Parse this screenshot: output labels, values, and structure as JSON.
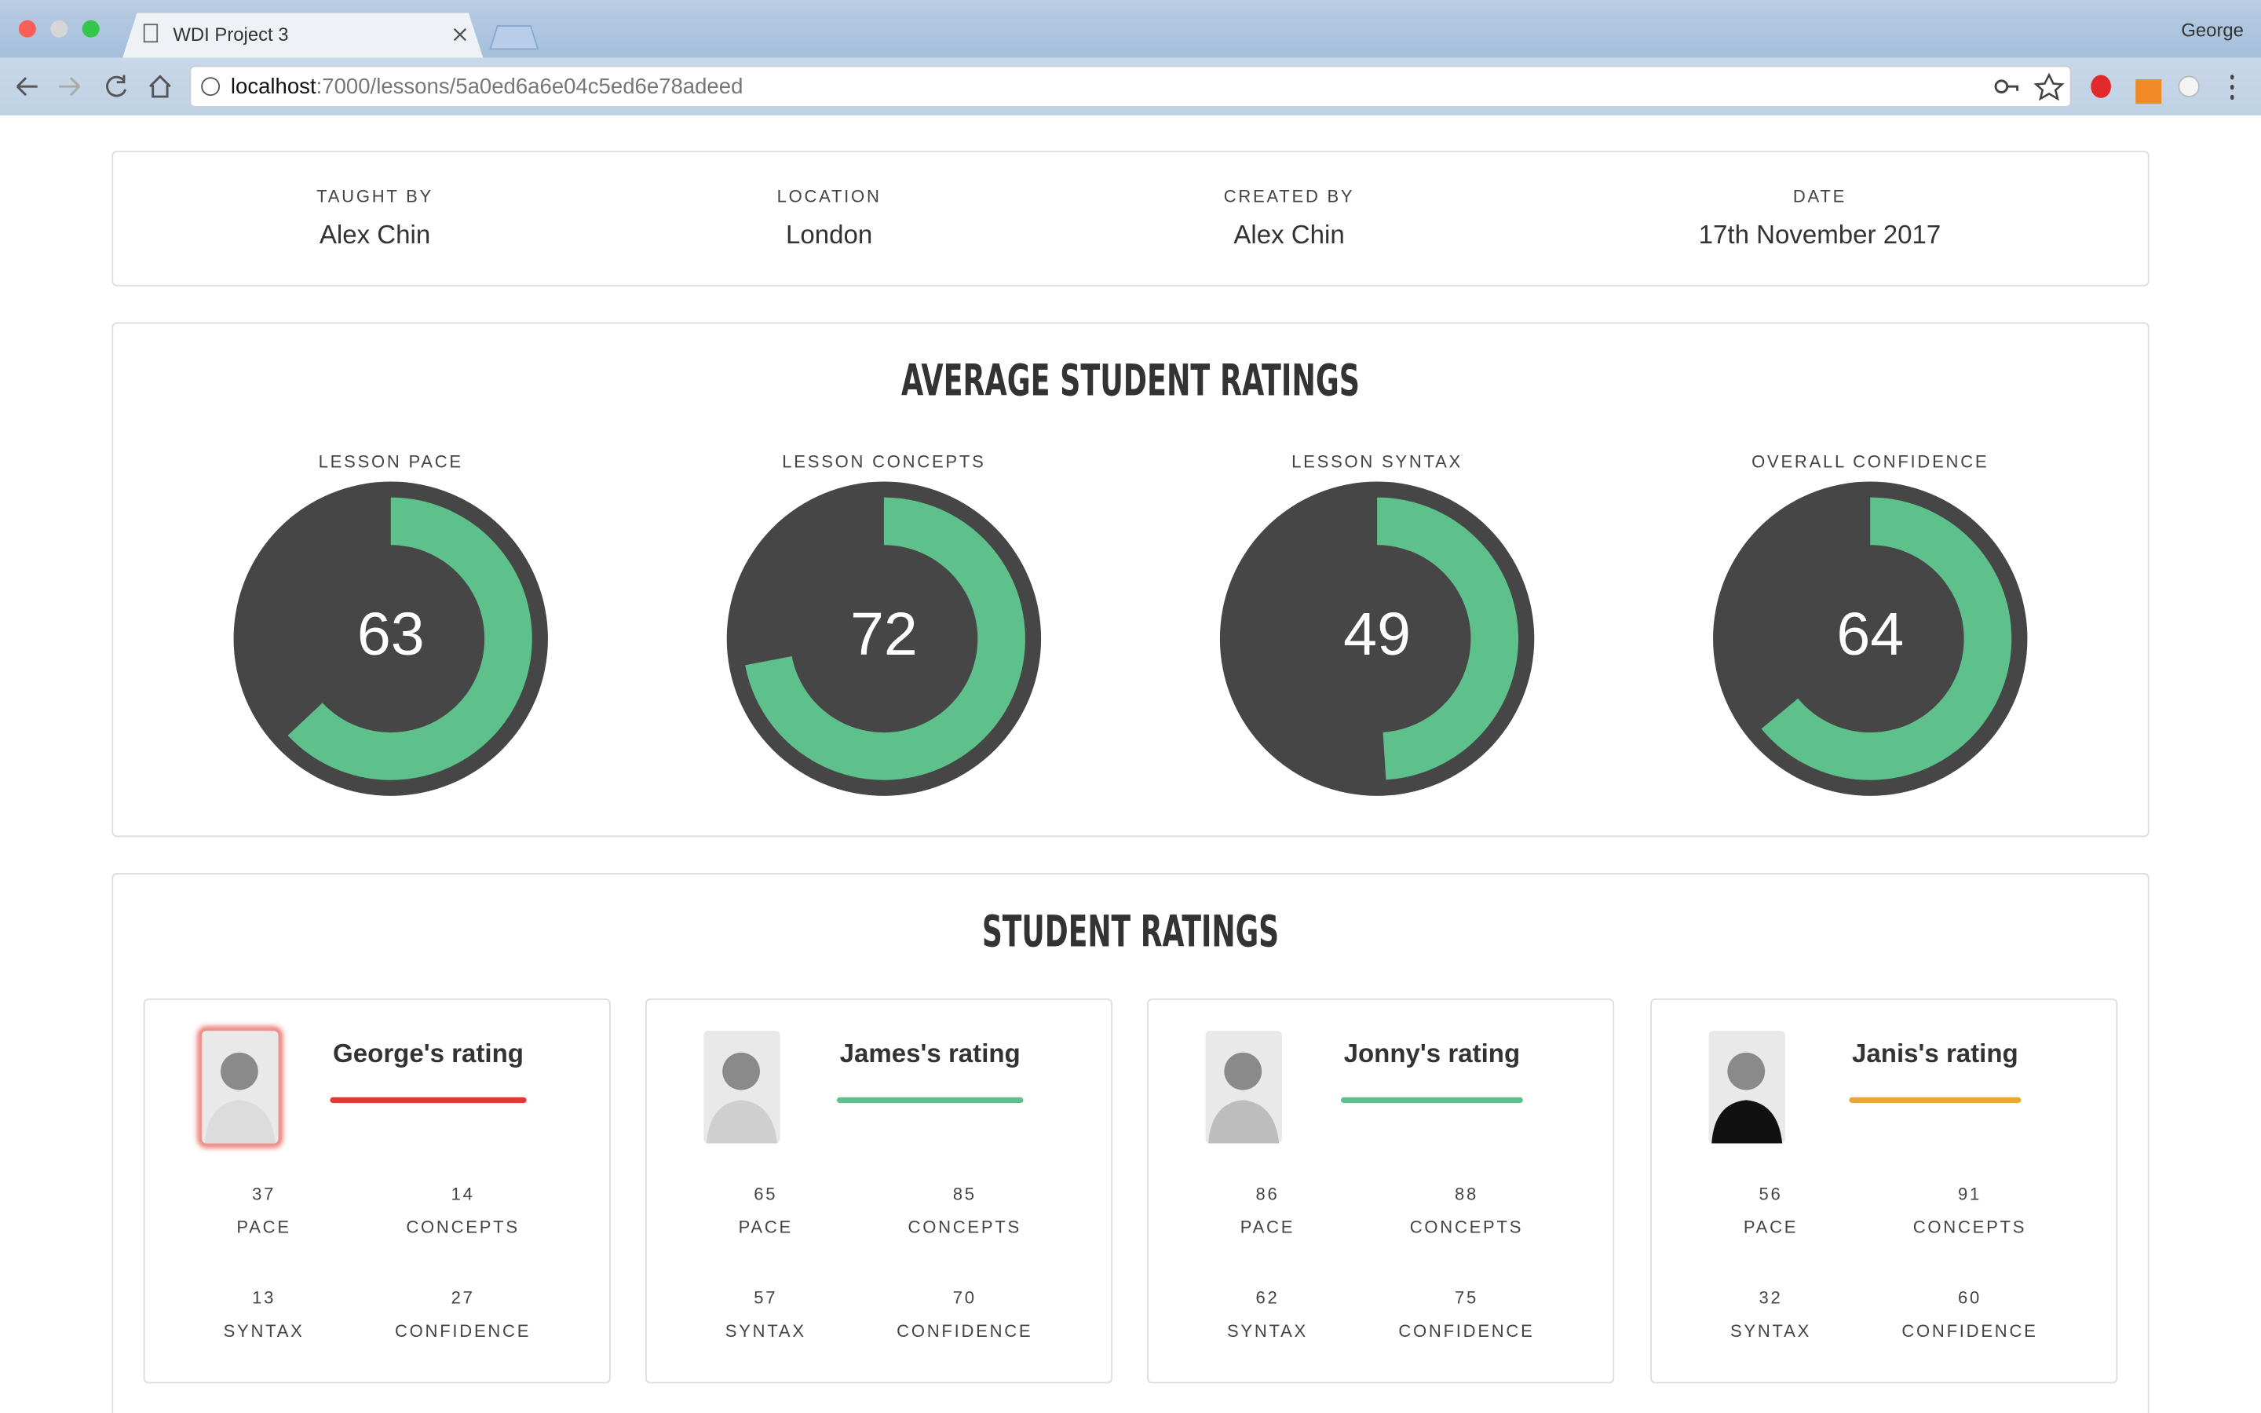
{
  "browser": {
    "tab_title": "WDI Project 3",
    "url_host": "localhost",
    "url_path": ":7000/lessons/5a0ed6a6e04c5ed6e78adeed",
    "user": "George"
  },
  "lesson_info": [
    {
      "label": "TAUGHT BY",
      "value": "Alex Chin"
    },
    {
      "label": "LOCATION",
      "value": "London"
    },
    {
      "label": "CREATED BY",
      "value": "Alex Chin"
    },
    {
      "label": "DATE",
      "value": "17th November 2017"
    }
  ],
  "chart_data": {
    "type": "gauge",
    "title": "AVERAGE STUDENT RATINGS",
    "categories": [
      "LESSON PACE",
      "LESSON CONCEPTS",
      "LESSON SYNTAX",
      "OVERALL CONFIDENCE"
    ],
    "values": [
      63,
      72,
      49,
      64
    ],
    "ylim": [
      0,
      100
    ],
    "color": "#5ec08a",
    "track_color": "#464646"
  },
  "student_ratings": {
    "title": "STUDENT RATINGS",
    "cards": [
      {
        "name": "George's rating",
        "color": "#e0392f",
        "stats": [
          {
            "value": 37,
            "label": "PACE"
          },
          {
            "value": 14,
            "label": "CONCEPTS"
          },
          {
            "value": 13,
            "label": "SYNTAX"
          },
          {
            "value": 27,
            "label": "CONFIDENCE"
          }
        ]
      },
      {
        "name": "James's rating",
        "color": "#5ec08a",
        "stats": [
          {
            "value": 65,
            "label": "PACE"
          },
          {
            "value": 85,
            "label": "CONCEPTS"
          },
          {
            "value": 57,
            "label": "SYNTAX"
          },
          {
            "value": 70,
            "label": "CONFIDENCE"
          }
        ]
      },
      {
        "name": "Jonny's rating",
        "color": "#5ec08a",
        "stats": [
          {
            "value": 86,
            "label": "PACE"
          },
          {
            "value": 88,
            "label": "CONCEPTS"
          },
          {
            "value": 62,
            "label": "SYNTAX"
          },
          {
            "value": 75,
            "label": "CONFIDENCE"
          }
        ]
      },
      {
        "name": "Janis's rating",
        "color": "#eba53a",
        "stats": [
          {
            "value": 56,
            "label": "PACE"
          },
          {
            "value": 91,
            "label": "CONCEPTS"
          },
          {
            "value": 32,
            "label": "SYNTAX"
          },
          {
            "value": 60,
            "label": "CONFIDENCE"
          }
        ]
      }
    ]
  }
}
